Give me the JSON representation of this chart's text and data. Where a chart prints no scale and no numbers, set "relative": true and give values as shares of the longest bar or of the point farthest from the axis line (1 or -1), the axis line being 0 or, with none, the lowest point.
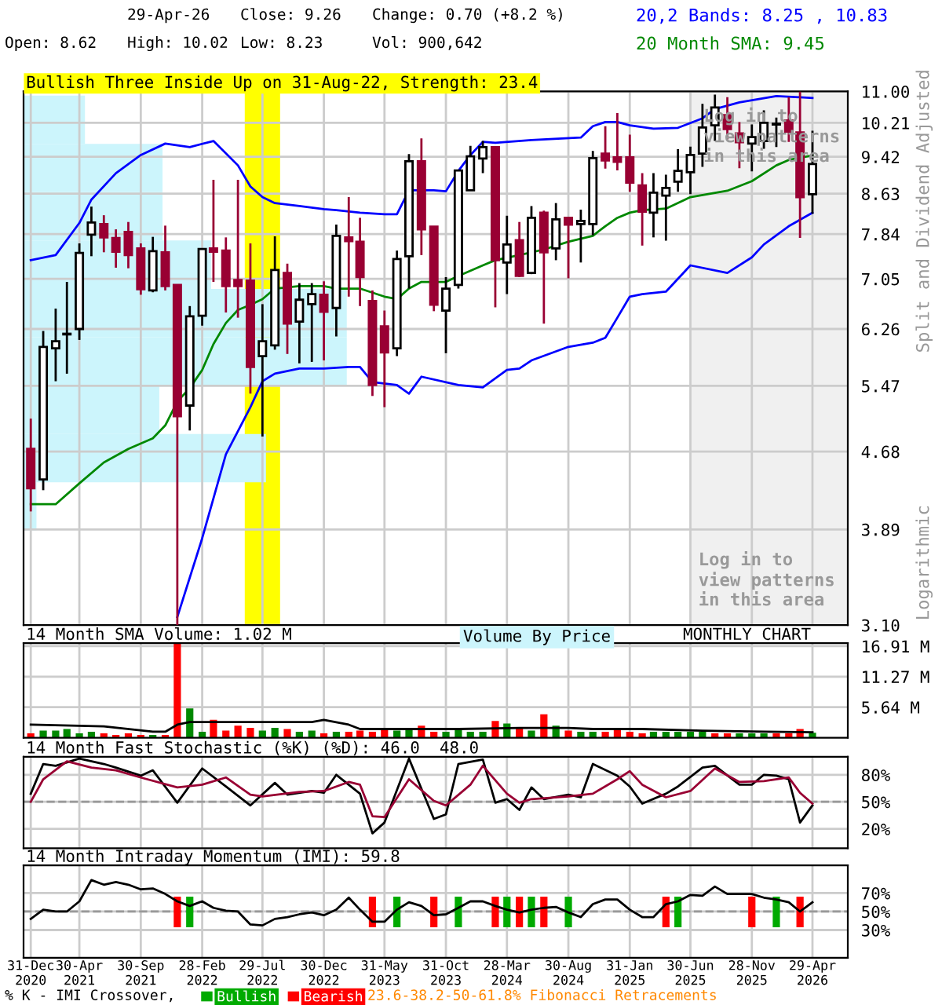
{
  "chart_data": [
    {
      "type": "candlestick",
      "title": "Bullish Three Inside Up on 31-Aug-22, Strength: 23.4",
      "ylabel": "Split and Dividend Adjusted",
      "annotations": [
        "29-Apr-26",
        "Close: 9.26",
        "Change: 0.70 (+8.2 %)",
        "Open: 8.62",
        "High: 10.02",
        "Low: 8.23",
        "Vol: 900,642",
        "Logarithmic",
        "Log in to\nview patterns\nin this area"
      ],
      "x": [
        "2020-12",
        "2021-01",
        "2021-02",
        "2021-03",
        "2021-04",
        "2021-05",
        "2021-06",
        "2021-07",
        "2021-08",
        "2021-09",
        "2021-10",
        "2021-11",
        "2021-12",
        "2022-01",
        "2022-02",
        "2022-03",
        "2022-04",
        "2022-05",
        "2022-06",
        "2022-07",
        "2022-08",
        "2022-09",
        "2022-10",
        "2022-11",
        "2022-12",
        "2023-01",
        "2023-02",
        "2023-03",
        "2023-04",
        "2023-05",
        "2023-06",
        "2023-07",
        "2023-08",
        "2023-09",
        "2023-10",
        "2023-11",
        "2023-12",
        "2024-01",
        "2024-02",
        "2024-03",
        "2024-04",
        "2024-05",
        "2024-06",
        "2024-07",
        "2024-08",
        "2024-09",
        "2024-10",
        "2024-11",
        "2024-12",
        "2025-01",
        "2025-02",
        "2025-03",
        "2025-04",
        "2025-05",
        "2025-06",
        "2025-07",
        "2025-08",
        "2025-09",
        "2025-10",
        "2025-11",
        "2025-12",
        "2026-01",
        "2026-02",
        "2026-03",
        "2026-04"
      ],
      "ohlc": [
        [
          4.71,
          5.06,
          4.06,
          4.29
        ],
        [
          4.38,
          6.23,
          4.27,
          6.0
        ],
        [
          5.98,
          6.57,
          5.53,
          6.08
        ],
        [
          6.18,
          7.0,
          5.63,
          6.19
        ],
        [
          6.26,
          7.67,
          6.1,
          7.5
        ],
        [
          7.83,
          8.37,
          7.44,
          8.06
        ],
        [
          8.03,
          8.2,
          7.51,
          7.78
        ],
        [
          7.77,
          7.93,
          7.24,
          7.52
        ],
        [
          7.88,
          8.07,
          7.23,
          7.46
        ],
        [
          7.58,
          7.67,
          6.79,
          6.88
        ],
        [
          6.86,
          7.79,
          6.83,
          7.53
        ],
        [
          7.51,
          8.0,
          6.86,
          6.93
        ],
        [
          6.95,
          6.95,
          3.1,
          5.09
        ],
        [
          5.22,
          6.61,
          4.92,
          6.45
        ],
        [
          6.46,
          7.57,
          6.31,
          7.57
        ],
        [
          7.58,
          8.92,
          7.0,
          7.52
        ],
        [
          7.54,
          7.78,
          6.51,
          6.93
        ],
        [
          7.03,
          8.92,
          6.43,
          6.93
        ],
        [
          7.02,
          7.67,
          5.37,
          5.72
        ],
        [
          5.87,
          6.64,
          4.85,
          6.08
        ],
        [
          6.02,
          7.8,
          5.96,
          7.2
        ],
        [
          7.15,
          7.31,
          5.9,
          6.34
        ],
        [
          6.37,
          6.98,
          5.77,
          6.71
        ],
        [
          6.64,
          6.98,
          5.79,
          6.8
        ],
        [
          6.79,
          7.01,
          5.81,
          6.52
        ],
        [
          6.58,
          8.02,
          6.15,
          7.81
        ],
        [
          7.78,
          8.56,
          6.76,
          7.71
        ],
        [
          7.7,
          8.15,
          6.61,
          7.08
        ],
        [
          6.69,
          6.86,
          5.34,
          5.48
        ],
        [
          6.3,
          6.54,
          5.2,
          5.92
        ],
        [
          5.98,
          7.54,
          5.87,
          7.39
        ],
        [
          7.44,
          9.48,
          6.89,
          9.32
        ],
        [
          9.32,
          9.84,
          7.46,
          7.93
        ],
        [
          7.98,
          7.98,
          6.53,
          6.63
        ],
        [
          6.54,
          7.08,
          5.91,
          6.89
        ],
        [
          6.95,
          9.12,
          6.89,
          9.12
        ],
        [
          8.7,
          9.67,
          8.7,
          9.43
        ],
        [
          9.38,
          9.78,
          9.06,
          9.64
        ],
        [
          9.64,
          9.64,
          6.59,
          7.37
        ],
        [
          7.33,
          8.19,
          6.8,
          7.65
        ],
        [
          7.73,
          8.07,
          7.08,
          7.1
        ],
        [
          7.15,
          8.38,
          7.13,
          8.15
        ],
        [
          8.25,
          8.29,
          6.34,
          7.51
        ],
        [
          7.58,
          8.44,
          7.37,
          8.12
        ],
        [
          8.15,
          8.15,
          7.06,
          8.02
        ],
        [
          8.03,
          8.31,
          7.33,
          8.09
        ],
        [
          8.03,
          9.55,
          7.82,
          9.39
        ],
        [
          9.49,
          10.13,
          9.16,
          9.34
        ],
        [
          9.41,
          10.45,
          9.12,
          9.31
        ],
        [
          9.41,
          9.93,
          8.67,
          8.86
        ],
        [
          8.8,
          9.06,
          7.63,
          8.27
        ],
        [
          8.25,
          9.06,
          7.78,
          8.65
        ],
        [
          8.59,
          9.03,
          7.72,
          8.75
        ],
        [
          8.88,
          9.59,
          8.67,
          9.11
        ],
        [
          9.08,
          9.65,
          8.62,
          9.46
        ],
        [
          9.49,
          10.68,
          9.2,
          10.1
        ],
        [
          10.15,
          10.92,
          9.78,
          10.59
        ],
        [
          10.4,
          10.85,
          9.82,
          10.06
        ],
        [
          9.96,
          10.23,
          9.17,
          9.75
        ],
        [
          9.72,
          10.17,
          9.1,
          9.87
        ],
        [
          9.78,
          10.52,
          9.6,
          10.21
        ],
        [
          10.17,
          10.34,
          9.64,
          10.19
        ],
        [
          10.27,
          10.85,
          9.76,
          10.0
        ],
        [
          9.98,
          11.0,
          7.77,
          8.56
        ],
        [
          8.62,
          10.02,
          8.23,
          9.26
        ]
      ],
      "colors": [
        "#990033",
        "#ffffff",
        "#ffffff",
        "#ffffff",
        "#ffffff",
        "#ffffff",
        "#990033",
        "#990033",
        "#990033",
        "#990033",
        "#ffffff",
        "#990033",
        "#990033",
        "#ffffff",
        "#ffffff",
        "#990033",
        "#990033",
        "#990033",
        "#990033",
        "#ffffff",
        "#ffffff",
        "#990033",
        "#ffffff",
        "#ffffff",
        "#990033",
        "#ffffff",
        "#990033",
        "#990033",
        "#990033",
        "#990033",
        "#ffffff",
        "#ffffff",
        "#990033",
        "#990033",
        "#ffffff",
        "#ffffff",
        "#ffffff",
        "#ffffff",
        "#990033",
        "#ffffff",
        "#990033",
        "#ffffff",
        "#990033",
        "#ffffff",
        "#990033",
        "#ffffff",
        "#ffffff",
        "#990033",
        "#990033",
        "#990033",
        "#990033",
        "#ffffff",
        "#ffffff",
        "#ffffff",
        "#ffffff",
        "#ffffff",
        "#ffffff",
        "#990033",
        "#990033",
        "#ffffff",
        "#ffffff",
        "#ffffff",
        "#990033",
        "#990033",
        "#ffffff"
      ],
      "series": [
        {
          "type": "line",
          "name": "20,2 Bands: 8.25 , 10.83",
          "color": "#0000ff",
          "x": [
            "2020-12",
            "2021-02",
            "2021-04",
            "2021-05",
            "2021-07",
            "2021-09",
            "2021-11",
            "2022-01",
            "2022-03",
            "2022-05",
            "2022-06",
            "2022-07",
            "2022-08",
            "2022-10",
            "2022-12",
            "2023-01",
            "2023-03",
            "2023-05",
            "2023-06",
            "2023-07",
            "2023-09",
            "2023-10",
            "2023-11",
            "2023-12",
            "2024-01",
            "2024-02",
            "2024-05",
            "2024-09",
            "2024-10",
            "2024-11",
            "2024-12",
            "2025-01",
            "2025-03",
            "2025-05",
            "2025-07",
            "2025-08",
            "2025-10",
            "2026-01",
            "2026-03",
            "2026-04"
          ],
          "values": [
            7.37,
            7.46,
            8.05,
            8.51,
            9.06,
            9.46,
            9.72,
            9.64,
            9.78,
            9.23,
            8.78,
            8.56,
            8.44,
            8.38,
            8.32,
            8.3,
            8.25,
            8.22,
            8.22,
            8.7,
            8.7,
            8.68,
            9.11,
            9.46,
            9.76,
            9.74,
            9.8,
            9.86,
            10.13,
            10.23,
            10.23,
            10.15,
            10.07,
            10.09,
            10.32,
            10.55,
            10.72,
            10.88,
            10.85,
            10.83
          ]
        },
        {
          "type": "line",
          "color": "#0000ff",
          "x": [
            "2021-12",
            "2022-02",
            "2022-04",
            "2022-06",
            "2022-07",
            "2022-08",
            "2022-10",
            "2022-12",
            "2023-02",
            "2023-03",
            "2023-04",
            "2023-06",
            "2023-07",
            "2023-08",
            "2023-11",
            "2024-01",
            "2024-03",
            "2024-04",
            "2024-05",
            "2024-08",
            "2024-10",
            "2024-11",
            "2024-12",
            "2025-01",
            "2025-02",
            "2025-04",
            "2025-06",
            "2025-09",
            "2025-11",
            "2025-12",
            "2026-02",
            "2026-04"
          ],
          "values": [
            3.16,
            3.81,
            4.65,
            5.2,
            5.53,
            5.63,
            5.7,
            5.7,
            5.72,
            5.72,
            5.52,
            5.48,
            5.37,
            5.59,
            5.48,
            5.45,
            5.68,
            5.7,
            5.81,
            6.0,
            6.06,
            6.13,
            6.43,
            6.76,
            6.8,
            6.84,
            7.28,
            7.15,
            7.42,
            7.65,
            7.99,
            8.25
          ]
        },
        {
          "type": "line",
          "name": "20 Month SMA: 9.45",
          "color": "#008800",
          "x": [
            "2020-12",
            "2021-02",
            "2021-04",
            "2021-06",
            "2021-08",
            "2021-10",
            "2021-11",
            "2021-12",
            "2022-01",
            "2022-02",
            "2022-03",
            "2022-04",
            "2022-05",
            "2022-06",
            "2022-07",
            "2022-08",
            "2022-10",
            "2022-12",
            "2023-01",
            "2023-03",
            "2023-05",
            "2023-06",
            "2023-07",
            "2023-08",
            "2023-10",
            "2023-11",
            "2024-01",
            "2024-02",
            "2024-04",
            "2024-06",
            "2024-08",
            "2024-10",
            "2024-11",
            "2024-12",
            "2025-01",
            "2025-02",
            "2025-04",
            "2025-06",
            "2025-09",
            "2025-11",
            "2026-01",
            "2026-02",
            "2026-04"
          ],
          "values": [
            4.13,
            4.13,
            4.34,
            4.56,
            4.71,
            4.83,
            4.98,
            5.27,
            5.44,
            5.68,
            6.04,
            6.35,
            6.55,
            6.63,
            6.72,
            6.89,
            6.93,
            6.93,
            6.89,
            6.89,
            6.76,
            6.72,
            6.89,
            7.0,
            7.0,
            7.1,
            7.28,
            7.37,
            7.46,
            7.56,
            7.7,
            7.81,
            7.99,
            8.15,
            8.25,
            8.3,
            8.33,
            8.56,
            8.69,
            8.89,
            9.23,
            9.35,
            9.45
          ]
        }
      ],
      "bands": [
        {
          "axis": "x",
          "from": "2022-05-18",
          "to": "2022-08-14",
          "color": "#ffff00"
        },
        {
          "axis": "x",
          "from": "2025-06",
          "to": "2026-06-28",
          "color": "#f0f0f0",
          "label": "Log in to\nview patterns\nin this area"
        }
      ],
      "log": true,
      "legend": "top right",
      "grid": true,
      "tick_labels": "y",
      "xlim": [
        "2020-11-13",
        "2026-06-28"
      ],
      "xticks": [
        {
          "value": "2020-12",
          "label": null
        },
        {
          "value": "2021-04",
          "label": null
        },
        {
          "value": "2021-09",
          "label": null
        },
        {
          "value": "2022-02",
          "label": null
        },
        {
          "value": "2022-07",
          "label": null
        },
        {
          "value": "2022-12",
          "label": null
        },
        {
          "value": "2023-05",
          "label": null
        },
        {
          "value": "2023-10",
          "label": null
        },
        {
          "value": "2024-03",
          "label": null
        },
        {
          "value": "2024-08",
          "label": null
        },
        {
          "value": "2025-01",
          "label": null
        },
        {
          "value": "2025-06",
          "label": null
        },
        {
          "value": "2025-11",
          "label": null
        },
        {
          "value": "2026-04",
          "label": null
        }
      ],
      "ylim": [
        3.1,
        11.0
      ],
      "yticks": [
        {
          "value": 3.1,
          "label": "3.10"
        },
        3.89,
        4.68,
        5.47,
        6.26,
        7.05,
        7.84,
        8.63,
        9.42,
        10.21,
        {
          "value": 11.0,
          "label": "11.00"
        }
      ]
    },
    {
      "type": "bar",
      "orientation": "horizontal",
      "relative": true,
      "legend": "bottom",
      "categories": [
        null,
        null,
        null,
        null,
        null,
        null,
        null,
        null,
        null
      ],
      "series": [
        {
          "name": "Volume By Price",
          "color": "#ccf5fc",
          "values": [
            0.19,
            0.43,
            0.43,
            0.58,
            1,
            1,
            0.42,
            0.75,
            0.04
          ]
        }
      ]
    },
    {
      "type": "bar",
      "title": "14 Month SMA Volume: 1.02 M",
      "annotations": [
        "MONTHLY CHART"
      ],
      "x": [
        "2020-12",
        "2021-01",
        "2021-02",
        "2021-03",
        "2021-04",
        "2021-05",
        "2021-06",
        "2021-07",
        "2021-08",
        "2021-09",
        "2021-10",
        "2021-11",
        "2021-12",
        "2022-01",
        "2022-02",
        "2022-03",
        "2022-04",
        "2022-05",
        "2022-06",
        "2022-07",
        "2022-08",
        "2022-09",
        "2022-10",
        "2022-11",
        "2022-12",
        "2023-01",
        "2023-02",
        "2023-03",
        "2023-04",
        "2023-05",
        "2023-06",
        "2023-07",
        "2023-08",
        "2023-09",
        "2023-10",
        "2023-11",
        "2023-12",
        "2024-01",
        "2024-02",
        "2024-03",
        "2024-04",
        "2024-05",
        "2024-06",
        "2024-07",
        "2024-08",
        "2024-09",
        "2024-10",
        "2024-11",
        "2024-12",
        "2025-01",
        "2025-02",
        "2025-03",
        "2025-04",
        "2025-05",
        "2025-06",
        "2025-07",
        "2025-08",
        "2025-09",
        "2025-10",
        "2025-11",
        "2025-12",
        "2026-01",
        "2026-02",
        "2026-03",
        "2026-04"
      ],
      "series": [
        {
          "type": "bar",
          "values": [
            0.8,
            1.3,
            1.3,
            1.6,
            0.8,
            1.1,
            0.8,
            0.5,
            0.8,
            0.5,
            0.5,
            0.5,
            17.4,
            5.4,
            1.1,
            3.3,
            1.3,
            2.2,
            1.8,
            1.3,
            1.8,
            1.6,
            1.1,
            1.3,
            0.8,
            1.1,
            1.1,
            1.3,
            1.1,
            1.5,
            1.3,
            1.8,
            2.2,
            1.1,
            1.1,
            1.8,
            1.1,
            1.1,
            3.1,
            2.6,
            1.8,
            1.3,
            4.3,
            2.2,
            1.3,
            1.1,
            1.1,
            1.1,
            1.6,
            1.1,
            0.8,
            1.1,
            1.1,
            1.1,
            1.1,
            1.1,
            0.8,
            0.8,
            0.8,
            0.8,
            0.8,
            0.8,
            0.8,
            1.6,
            0.9
          ],
          "colors": [
            "#ff0000",
            "#008800",
            "#008800",
            "#008800",
            "#008800",
            "#008800",
            "#ff0000",
            "#ff0000",
            "#ff0000",
            "#ff0000",
            "#008800",
            "#ff0000",
            "#ff0000",
            "#008800",
            "#008800",
            "#ff0000",
            "#ff0000",
            "#ff0000",
            "#ff0000",
            "#008800",
            "#008800",
            "#ff0000",
            "#008800",
            "#008800",
            "#ff0000",
            "#008800",
            "#ff0000",
            "#ff0000",
            "#ff0000",
            "#ff0000",
            "#008800",
            "#008800",
            "#ff0000",
            "#ff0000",
            "#008800",
            "#008800",
            "#008800",
            "#008800",
            "#ff0000",
            "#008800",
            "#ff0000",
            "#008800",
            "#ff0000",
            "#008800",
            "#ff0000",
            "#008800",
            "#008800",
            "#ff0000",
            "#ff0000",
            "#ff0000",
            "#ff0000",
            "#008800",
            "#008800",
            "#008800",
            "#008800",
            "#008800",
            "#ff0000",
            "#ff0000",
            "#008800",
            "#008800",
            "#008800",
            "#ff0000",
            "#ff0000",
            "#ff0000",
            "#008800"
          ]
        },
        {
          "type": "line",
          "color": "#000000",
          "x": [
            "2020-12",
            "2021-06",
            "2021-10",
            "2021-11",
            "2021-12",
            "2022-01",
            "2022-08",
            "2022-11",
            "2022-12",
            "2023-02",
            "2023-03",
            "2023-11",
            "2024-04",
            "2024-08",
            "2024-10",
            "2025-02",
            "2025-07",
            "2025-12",
            "2026-04"
          ],
          "values": [
            2.4,
            2.1,
            1.1,
            1.1,
            2.4,
            2.9,
            2.9,
            2.9,
            3.3,
            2.4,
            1.6,
            1.6,
            1.8,
            1.8,
            1.6,
            1.6,
            1.3,
            1.1,
            1.0
          ]
        }
      ],
      "grid": true,
      "tick_labels": "y",
      "xlim": [
        "2020-11-13",
        "2026-06-28"
      ],
      "xticks": [
        {
          "value": "2020-12",
          "label": null
        },
        {
          "value": "2021-04",
          "label": null
        },
        {
          "value": "2021-09",
          "label": null
        },
        {
          "value": "2022-02",
          "label": null
        },
        {
          "value": "2022-07",
          "label": null
        },
        {
          "value": "2022-12",
          "label": null
        },
        {
          "value": "2023-05",
          "label": null
        },
        {
          "value": "2023-10",
          "label": null
        },
        {
          "value": "2024-03",
          "label": null
        },
        {
          "value": "2024-08",
          "label": null
        },
        {
          "value": "2025-01",
          "label": null
        },
        {
          "value": "2025-06",
          "label": null
        },
        {
          "value": "2025-11",
          "label": null
        },
        {
          "value": "2026-04",
          "label": null
        }
      ],
      "ylim": [
        0,
        17.45
      ],
      "yticks": [
        {
          "value": 5.64,
          "label": "5.64 M"
        },
        {
          "value": 11.27,
          "label": "11.27 M"
        },
        {
          "value": 16.91,
          "label": "16.91 M"
        }
      ]
    },
    {
      "type": "line",
      "title": "14 Month Fast Stochastic (%K) (%D): 46.0  48.0",
      "series": [
        {
          "type": "line",
          "color": "#000000",
          "x": [
            "2020-12",
            "2021-01",
            "2021-02",
            "2021-04",
            "2021-06",
            "2021-07",
            "2021-09",
            "2021-10",
            "2021-12",
            "2022-02",
            "2022-04",
            "2022-06",
            "2022-08",
            "2022-09",
            "2022-11",
            "2022-12",
            "2023-01",
            "2023-03",
            "2023-04",
            "2023-05",
            "2023-07",
            "2023-09",
            "2023-10",
            "2023-11",
            "2024-01",
            "2024-02",
            "2024-03",
            "2024-04",
            "2024-05",
            "2024-06",
            "2024-08",
            "2024-09",
            "2024-10",
            "2024-12",
            "2025-01",
            "2025-02",
            "2025-04",
            "2025-05",
            "2025-07",
            "2025-08",
            "2025-10",
            "2025-11",
            "2025-12",
            "2026-01",
            "2026-02",
            "2026-03",
            "2026-04"
          ],
          "values": [
            59,
            92,
            90,
            98,
            92,
            88,
            79,
            85,
            49,
            87,
            67,
            46,
            71,
            58,
            62,
            60,
            80,
            59,
            15,
            27,
            98,
            31,
            36,
            92,
            97,
            49,
            53,
            41,
            66,
            53,
            58,
            55,
            92,
            79,
            67,
            48,
            59,
            67,
            88,
            90,
            69,
            69,
            80,
            79,
            75,
            27,
            46
          ]
        },
        {
          "type": "line",
          "color": "#990033",
          "x": [
            "2020-12",
            "2021-01",
            "2021-03",
            "2021-05",
            "2021-07",
            "2021-09",
            "2021-12",
            "2022-02",
            "2022-04",
            "2022-06",
            "2022-07",
            "2022-10",
            "2022-12",
            "2023-02",
            "2023-03",
            "2023-04",
            "2023-05",
            "2023-07",
            "2023-09",
            "2023-10",
            "2023-12",
            "2024-01",
            "2024-03",
            "2024-04",
            "2024-05",
            "2024-08",
            "2024-10",
            "2024-12",
            "2025-01",
            "2025-02",
            "2025-04",
            "2025-06",
            "2025-08",
            "2025-10",
            "2025-12",
            "2026-02",
            "2026-03",
            "2026-04"
          ],
          "values": [
            50,
            75,
            95,
            88,
            85,
            77,
            66,
            69,
            77,
            58,
            56,
            61,
            62,
            72,
            69,
            34,
            33,
            75,
            51,
            46,
            69,
            90,
            59,
            49,
            53,
            56,
            59,
            75,
            84,
            69,
            55,
            62,
            87,
            72,
            73,
            77,
            60,
            48
          ]
        }
      ],
      "ref_lines": [
        {
          "axis": "y",
          "value": 50,
          "color": "#999999",
          "line_style": "dashed"
        }
      ],
      "grid": true,
      "tick_labels": "y",
      "xlim": [
        "2020-11-13",
        "2026-06-28"
      ],
      "xticks": [
        {
          "value": "2020-12",
          "label": null
        },
        {
          "value": "2021-04",
          "label": null
        },
        {
          "value": "2021-09",
          "label": null
        },
        {
          "value": "2022-02",
          "label": null
        },
        {
          "value": "2022-07",
          "label": null
        },
        {
          "value": "2022-12",
          "label": null
        },
        {
          "value": "2023-05",
          "label": null
        },
        {
          "value": "2023-10",
          "label": null
        },
        {
          "value": "2024-03",
          "label": null
        },
        {
          "value": "2024-08",
          "label": null
        },
        {
          "value": "2025-01",
          "label": null
        },
        {
          "value": "2025-06",
          "label": null
        },
        {
          "value": "2025-11",
          "label": null
        },
        {
          "value": "2026-04",
          "label": null
        }
      ],
      "ylim": [
        -1.5,
        100
      ],
      "yticks": [
        {
          "value": 20,
          "label": "20%"
        },
        {
          "value": 50,
          "label": "50%"
        },
        {
          "value": 80,
          "label": "80%"
        }
      ]
    },
    {
      "type": "line",
      "title": "14 Month Intraday Momentum (IMI): 59.8",
      "legend_title": "% K - IMI Crossover,",
      "annotations": [
        "23.6-38.2-50-61.8% Fibonacci Retracements"
      ],
      "x": [
        "2020-12",
        "2021-01",
        "2021-02",
        "2021-03",
        "2021-04",
        "2021-05",
        "2021-06",
        "2021-07",
        "2021-08",
        "2021-09",
        "2021-10",
        "2021-11",
        "2021-12",
        "2022-01",
        "2022-02",
        "2022-03",
        "2022-04",
        "2022-05",
        "2022-06",
        "2022-07",
        "2022-08",
        "2022-09",
        "2022-10",
        "2022-11",
        "2022-12",
        "2023-01",
        "2023-02",
        "2023-03",
        "2023-04",
        "2023-05",
        "2023-06",
        "2023-07",
        "2023-08",
        "2023-09",
        "2023-10",
        "2023-11",
        "2023-12",
        "2024-01",
        "2024-02",
        "2024-03",
        "2024-04",
        "2024-05",
        "2024-06",
        "2024-07",
        "2024-08",
        "2024-09",
        "2024-10",
        "2024-11",
        "2024-12",
        "2025-01",
        "2025-02",
        "2025-03",
        "2025-04",
        "2025-05",
        "2025-06",
        "2025-07",
        "2025-08",
        "2025-09",
        "2025-10",
        "2025-11",
        "2025-12",
        "2026-01",
        "2026-02",
        "2026-03",
        "2026-04"
      ],
      "series": [
        {
          "type": "bar",
          "name": "Bullish",
          "color": "#00aa00",
          "x": [
            "2022-01",
            "2023-06",
            "2023-11",
            "2024-03",
            "2024-05",
            "2024-08",
            "2025-05",
            "2026-01"
          ],
          "base": [
            33,
            33,
            33,
            33,
            33,
            33,
            33,
            33
          ],
          "values": [
            33,
            33,
            33,
            33,
            33,
            33,
            33,
            33
          ]
        },
        {
          "type": "bar",
          "name": "Bearish",
          "color": "#ff0000",
          "x": [
            "2021-12",
            "2023-04",
            "2023-09",
            "2024-02",
            "2024-04",
            "2024-06",
            "2025-04",
            "2025-11",
            "2026-03"
          ],
          "base": [
            33,
            33,
            33,
            33,
            33,
            33,
            33,
            33,
            33
          ],
          "values": [
            33,
            33,
            33,
            33,
            33,
            33,
            33,
            33,
            33
          ]
        },
        {
          "type": "line",
          "color": "#000000",
          "values": [
            42,
            52,
            50,
            50,
            61,
            84,
            79,
            82,
            79,
            74,
            75,
            69,
            61,
            56,
            61,
            54,
            51,
            50,
            36,
            35,
            42,
            44,
            47,
            49,
            46,
            52,
            65,
            52,
            39,
            39,
            52,
            60,
            56,
            46,
            47,
            54,
            61,
            61,
            56,
            52,
            49,
            52,
            54,
            55,
            49,
            44,
            58,
            63,
            63,
            52,
            44,
            44,
            58,
            61,
            68,
            67,
            77,
            69,
            69,
            69,
            65,
            63,
            60,
            50,
            60
          ]
        }
      ],
      "ref_lines": [
        {
          "axis": "y",
          "value": 50,
          "color": "#999999",
          "line_style": "dashed"
        }
      ],
      "grid": true,
      "legend": "bottom",
      "xlim": [
        "2020-11-13",
        "2026-06-28"
      ],
      "xticks": [
        {
          "value": "2020-12",
          "label": "31-Dec\n2020"
        },
        {
          "value": "2021-04",
          "label": "30-Apr\n2021"
        },
        {
          "value": "2021-09",
          "label": "30-Sep\n2021"
        },
        {
          "value": "2022-02",
          "label": "28-Feb\n2022"
        },
        {
          "value": "2022-07",
          "label": "29-Jul\n2022"
        },
        {
          "value": "2022-12",
          "label": "30-Dec\n2022"
        },
        {
          "value": "2023-05",
          "label": "31-May\n2023"
        },
        {
          "value": "2023-10",
          "label": "31-Oct\n2023"
        },
        {
          "value": "2024-03",
          "label": "28-Mar\n2024"
        },
        {
          "value": "2024-08",
          "label": "30-Aug\n2024"
        },
        {
          "value": "2025-01",
          "label": "31-Jan\n2025"
        },
        {
          "value": "2025-06",
          "label": "30-Jun\n2025"
        },
        {
          "value": "2025-11",
          "label": "28-Nov\n2025"
        },
        {
          "value": "2026-04",
          "label": "29-Apr\n2026"
        }
      ],
      "ylim": [
        0,
        100
      ],
      "yticks": [
        {
          "value": 30,
          "label": "30%"
        },
        {
          "value": 50,
          "label": "50%"
        },
        {
          "value": 70,
          "label": "70%"
        }
      ]
    }
  ]
}
